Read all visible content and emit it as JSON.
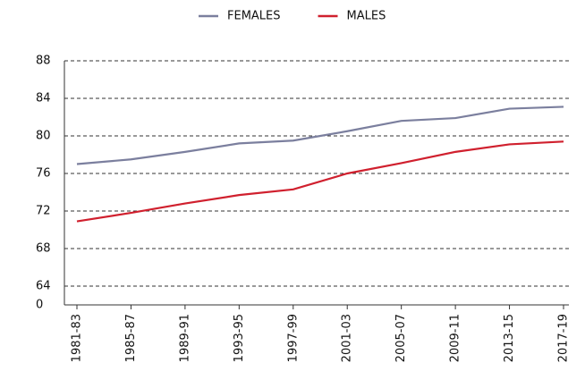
{
  "chart_data": {
    "type": "line",
    "categories": [
      "1981-83",
      "1985-87",
      "1989-91",
      "1993-95",
      "1997-99",
      "2001-03",
      "2005-07",
      "2009-11",
      "2013-15",
      "2017-19"
    ],
    "series": [
      {
        "name": "FEMALES",
        "color": "#7b7f9e",
        "values": [
          77.0,
          77.5,
          78.3,
          79.2,
          79.5,
          80.5,
          81.6,
          81.9,
          82.9,
          83.1
        ]
      },
      {
        "name": "MALES",
        "color": "#d0202e",
        "values": [
          70.9,
          71.8,
          72.8,
          73.7,
          74.3,
          76.0,
          77.1,
          78.3,
          79.1,
          79.4
        ]
      }
    ],
    "ylim": [
      62,
      88
    ],
    "yticks": [
      0,
      64,
      68,
      72,
      76,
      80,
      84,
      88
    ],
    "y_axis_break": true,
    "grid": true,
    "legend": "top"
  }
}
